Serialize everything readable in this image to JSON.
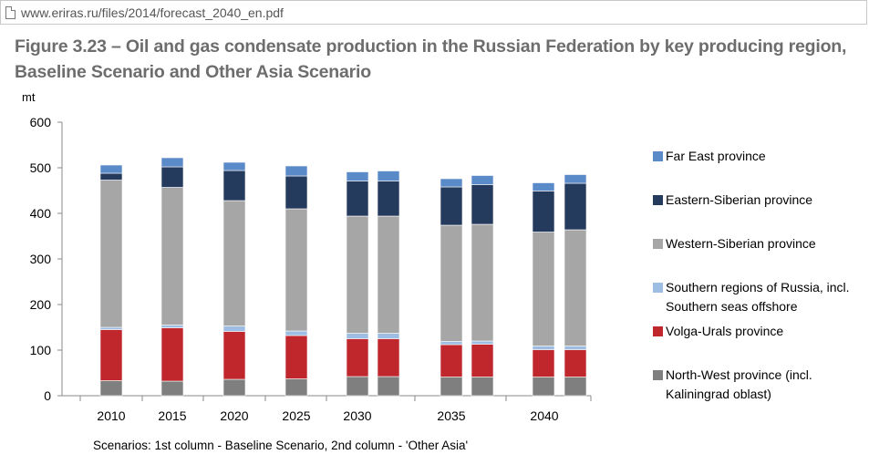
{
  "browser": {
    "url": "www.eriras.ru/files/2014/forecast_2040_en.pdf"
  },
  "figure": {
    "title_line1": "Figure 3.23 – Oil and gas condensate production in the Russian Federation by key producing region,",
    "title_line2": "Baseline Scenario and Other Asia Scenario",
    "note": "Scenarios: 1st column - Baseline Scenario, 2nd column - 'Other Asia'"
  },
  "chart_data": {
    "type": "bar",
    "stacked": true,
    "ylabel": "mt",
    "ylim": [
      0,
      600
    ],
    "yticks": [
      0,
      100,
      200,
      300,
      400,
      500,
      600
    ],
    "grid": false,
    "legend_position": "right",
    "year_labels": [
      "2010",
      "2015",
      "2020",
      "2025",
      "2030",
      "2035",
      "2040"
    ],
    "categories": [
      "2010",
      "2015",
      "2020",
      "2025",
      "2030 Baseline",
      "2030 Other Asia",
      "2035 Baseline",
      "2035 Other Asia",
      "2040 Baseline",
      "2040 Other Asia"
    ],
    "series": [
      {
        "name": "North-West province (incl. Kaliningrad oblast)",
        "color": "#7f7f7f",
        "values": [
          33,
          32,
          36,
          37,
          42,
          42,
          41,
          41,
          41,
          41
        ]
      },
      {
        "name": "Volga-Urals province",
        "color": "#c0272d",
        "values": [
          112,
          117,
          105,
          95,
          83,
          83,
          71,
          72,
          60,
          60
        ]
      },
      {
        "name": "Southern regions of Russia, incl. Southern seas offshore",
        "color": "#9dbde2",
        "values": [
          5,
          6,
          12,
          10,
          12,
          12,
          7,
          7,
          8,
          8
        ]
      },
      {
        "name": "Western-Siberian province",
        "color": "#a6a6a6",
        "values": [
          323,
          302,
          275,
          268,
          257,
          257,
          255,
          256,
          250,
          255
        ]
      },
      {
        "name": "Eastern-Siberian province",
        "color": "#243b5e",
        "values": [
          15,
          45,
          66,
          72,
          77,
          77,
          84,
          87,
          90,
          102
        ]
      },
      {
        "name": "Far East province",
        "color": "#5b8ac8",
        "values": [
          18,
          20,
          18,
          22,
          20,
          22,
          18,
          20,
          18,
          19
        ]
      }
    ],
    "legend_order": [
      "Far East province",
      "Eastern-Siberian province",
      "Western-Siberian province",
      "Southern regions of Russia, incl. Southern seas offshore",
      "Volga-Urals province",
      "North-West province (incl. Kaliningrad oblast)"
    ]
  }
}
